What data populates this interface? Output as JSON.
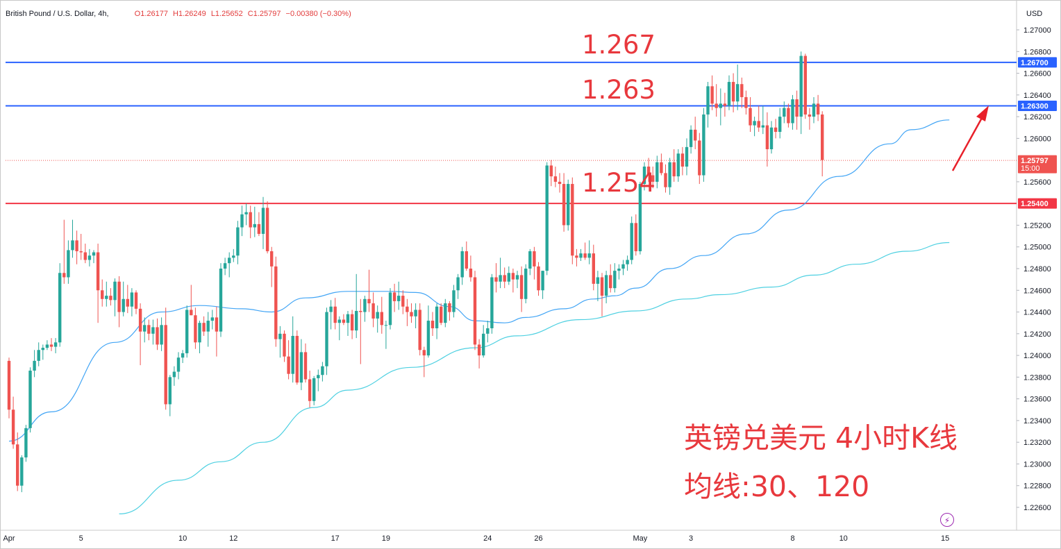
{
  "header": {
    "symbol": "British Pound / U.S. Dollar, 4h,",
    "open": "O1.26177",
    "high": "H1.26249",
    "low": "L1.25652",
    "close": "C1.25797",
    "change": "−0.00380 (−0.30%)",
    "currency": "USD"
  },
  "annotations": {
    "level_high": "1.267",
    "level_mid": "1.263",
    "level_low": "1.254",
    "title_cn": "英镑兑美元 4小时K线",
    "ma_cn": "均线:30、120"
  },
  "colors": {
    "up": "#26a69a",
    "down": "#ef5350",
    "ma30": "#42a5f5",
    "ma120": "#4dd0e1",
    "resistance": "#2962ff",
    "support": "#f23645",
    "annotation": "#e8383d"
  },
  "chart_data": {
    "type": "candlestick",
    "timeframe": "4h",
    "ylim": [
      1.2252,
      1.2718
    ],
    "y_ticks": [
      "1.27000",
      "1.26800",
      "1.26600",
      "1.26400",
      "1.26200",
      "1.26000",
      "1.25600",
      "1.25200",
      "1.25000",
      "1.24800",
      "1.24600",
      "1.24400",
      "1.24200",
      "1.24000",
      "1.23800",
      "1.23600",
      "1.23400",
      "1.23200",
      "1.23000",
      "1.22800",
      "1.22600"
    ],
    "x_labels": [
      {
        "label": "Apr",
        "bar": 0
      },
      {
        "label": "5",
        "bar": 17
      },
      {
        "label": "10",
        "bar": 41
      },
      {
        "label": "12",
        "bar": 53
      },
      {
        "label": "17",
        "bar": 77
      },
      {
        "label": "19",
        "bar": 89
      },
      {
        "label": "24",
        "bar": 113
      },
      {
        "label": "26",
        "bar": 125
      },
      {
        "label": "May",
        "bar": 149
      },
      {
        "label": "3",
        "bar": 161
      },
      {
        "label": "8",
        "bar": 185
      },
      {
        "label": "10",
        "bar": 197
      },
      {
        "label": "15",
        "bar": 221
      }
    ],
    "horizontal_lines": [
      {
        "value": 1.267,
        "label": "1.26700",
        "kind": "resistance"
      },
      {
        "value": 1.263,
        "label": "1.26300",
        "kind": "resistance"
      },
      {
        "value": 1.254,
        "label": "1.25400",
        "kind": "support"
      }
    ],
    "last_price": {
      "value": 1.25797,
      "label": "1.25797",
      "countdown": "15:00"
    },
    "ohlc": [
      [
        1.2395,
        1.2398,
        1.2342,
        1.235
      ],
      [
        1.235,
        1.2362,
        1.2314,
        1.2318
      ],
      [
        1.2318,
        1.2329,
        1.2275,
        1.228
      ],
      [
        1.228,
        1.2308,
        1.2274,
        1.2306
      ],
      [
        1.2306,
        1.2336,
        1.2302,
        1.2333
      ],
      [
        1.2333,
        1.2389,
        1.2329,
        1.2386
      ],
      [
        1.2386,
        1.2405,
        1.238,
        1.2395
      ],
      [
        1.2395,
        1.2412,
        1.239,
        1.2405
      ],
      [
        1.2405,
        1.241,
        1.2396,
        1.2407
      ],
      [
        1.2407,
        1.2414,
        1.2405,
        1.241
      ],
      [
        1.241,
        1.2416,
        1.2404,
        1.2408
      ],
      [
        1.2408,
        1.2416,
        1.2402,
        1.2412
      ],
      [
        1.2412,
        1.2485,
        1.2408,
        1.2476
      ],
      [
        1.2476,
        1.2525,
        1.2466,
        1.2472
      ],
      [
        1.2472,
        1.2506,
        1.2466,
        1.2497
      ],
      [
        1.2497,
        1.2525,
        1.249,
        1.2506
      ],
      [
        1.2506,
        1.2515,
        1.2484,
        1.2496
      ],
      [
        1.2496,
        1.2512,
        1.2488,
        1.2495
      ],
      [
        1.2495,
        1.2503,
        1.2485,
        1.2488
      ],
      [
        1.2488,
        1.2498,
        1.2482,
        1.2492
      ],
      [
        1.2492,
        1.2497,
        1.2485,
        1.2495
      ],
      [
        1.2495,
        1.2503,
        1.243,
        1.246
      ],
      [
        1.246,
        1.247,
        1.2445,
        1.2452
      ],
      [
        1.2452,
        1.2468,
        1.2445,
        1.2455
      ],
      [
        1.2455,
        1.2462,
        1.2446,
        1.2451
      ],
      [
        1.2451,
        1.2471,
        1.2436,
        1.2468
      ],
      [
        1.2468,
        1.2473,
        1.2426,
        1.244
      ],
      [
        1.244,
        1.2468,
        1.2436,
        1.2452
      ],
      [
        1.2452,
        1.2465,
        1.2439,
        1.2445
      ],
      [
        1.2445,
        1.2462,
        1.2436,
        1.2458
      ],
      [
        1.2458,
        1.246,
        1.2438,
        1.2443
      ],
      [
        1.2443,
        1.2448,
        1.2391,
        1.2422
      ],
      [
        1.2422,
        1.2435,
        1.2412,
        1.2428
      ],
      [
        1.2428,
        1.2433,
        1.2414,
        1.242
      ],
      [
        1.242,
        1.2433,
        1.241,
        1.2426
      ],
      [
        1.2426,
        1.2434,
        1.2405,
        1.241
      ],
      [
        1.241,
        1.2435,
        1.2404,
        1.2428
      ],
      [
        1.2428,
        1.2444,
        1.235,
        1.2355
      ],
      [
        1.2355,
        1.2382,
        1.2344,
        1.238
      ],
      [
        1.238,
        1.239,
        1.2372,
        1.2385
      ],
      [
        1.2385,
        1.2403,
        1.2378,
        1.2398
      ],
      [
        1.2398,
        1.2405,
        1.2393,
        1.2402
      ],
      [
        1.2402,
        1.2446,
        1.2398,
        1.2442
      ],
      [
        1.2442,
        1.2465,
        1.2437,
        1.2437
      ],
      [
        1.2437,
        1.2444,
        1.2406,
        1.2412
      ],
      [
        1.2412,
        1.2432,
        1.2402,
        1.243
      ],
      [
        1.243,
        1.2436,
        1.2418,
        1.2422
      ],
      [
        1.2422,
        1.244,
        1.2408,
        1.2432
      ],
      [
        1.2432,
        1.2442,
        1.2424,
        1.2435
      ],
      [
        1.2435,
        1.2445,
        1.2399,
        1.2422
      ],
      [
        1.2422,
        1.2485,
        1.2417,
        1.248
      ],
      [
        1.248,
        1.249,
        1.2474,
        1.2485
      ],
      [
        1.2485,
        1.2495,
        1.2472,
        1.249
      ],
      [
        1.249,
        1.2498,
        1.2486,
        1.2492
      ],
      [
        1.2492,
        1.2524,
        1.2484,
        1.2518
      ],
      [
        1.2518,
        1.2538,
        1.251,
        1.253
      ],
      [
        1.253,
        1.254,
        1.252,
        1.2532
      ],
      [
        1.2532,
        1.2538,
        1.2508,
        1.2518
      ],
      [
        1.2518,
        1.2537,
        1.2509,
        1.2521
      ],
      [
        1.2521,
        1.2532,
        1.251,
        1.2512
      ],
      [
        1.2512,
        1.2546,
        1.2498,
        1.2536
      ],
      [
        1.2536,
        1.2542,
        1.2494,
        1.2496
      ],
      [
        1.2496,
        1.25,
        1.2463,
        1.2482
      ],
      [
        1.2482,
        1.2491,
        1.2408,
        1.2415
      ],
      [
        1.2415,
        1.2427,
        1.2398,
        1.242
      ],
      [
        1.242,
        1.2423,
        1.2394,
        1.2399
      ],
      [
        1.2399,
        1.2414,
        1.2378,
        1.2383
      ],
      [
        1.2383,
        1.2436,
        1.2375,
        1.2418
      ],
      [
        1.2418,
        1.2423,
        1.2373,
        1.2375
      ],
      [
        1.2375,
        1.2415,
        1.2368,
        1.2403
      ],
      [
        1.2403,
        1.2411,
        1.2375,
        1.2378
      ],
      [
        1.2378,
        1.2386,
        1.2352,
        1.2358
      ],
      [
        1.2358,
        1.2381,
        1.2354,
        1.2379
      ],
      [
        1.2379,
        1.2387,
        1.2367,
        1.2382
      ],
      [
        1.2382,
        1.2394,
        1.2376,
        1.239
      ],
      [
        1.239,
        1.2444,
        1.2382,
        1.244
      ],
      [
        1.244,
        1.2451,
        1.2424,
        1.2445
      ],
      [
        1.2445,
        1.2453,
        1.2424,
        1.243
      ],
      [
        1.243,
        1.2436,
        1.2414,
        1.2433
      ],
      [
        1.2433,
        1.2438,
        1.2428,
        1.243
      ],
      [
        1.243,
        1.2441,
        1.2418,
        1.2438
      ],
      [
        1.2438,
        1.2442,
        1.2415,
        1.2423
      ],
      [
        1.2423,
        1.2475,
        1.2416,
        1.2441
      ],
      [
        1.2441,
        1.2452,
        1.2392,
        1.244
      ],
      [
        1.244,
        1.2455,
        1.2431,
        1.2452
      ],
      [
        1.2452,
        1.2479,
        1.244,
        1.2448
      ],
      [
        1.2448,
        1.2458,
        1.2426,
        1.2434
      ],
      [
        1.2434,
        1.2446,
        1.2421,
        1.244
      ],
      [
        1.244,
        1.2454,
        1.242,
        1.2428
      ],
      [
        1.2428,
        1.2432,
        1.2406,
        1.2428
      ],
      [
        1.2428,
        1.2462,
        1.2424,
        1.2458
      ],
      [
        1.2458,
        1.2466,
        1.244,
        1.245
      ],
      [
        1.245,
        1.2468,
        1.2442,
        1.2455
      ],
      [
        1.2455,
        1.246,
        1.2438,
        1.2445
      ],
      [
        1.2445,
        1.2452,
        1.2427,
        1.244
      ],
      [
        1.244,
        1.2448,
        1.243,
        1.2436
      ],
      [
        1.2436,
        1.2448,
        1.2425,
        1.2442
      ],
      [
        1.2442,
        1.2448,
        1.24,
        1.2405
      ],
      [
        1.2405,
        1.2408,
        1.238,
        1.24
      ],
      [
        1.24,
        1.2446,
        1.2398,
        1.2432
      ],
      [
        1.2432,
        1.244,
        1.2418,
        1.2425
      ],
      [
        1.2425,
        1.2448,
        1.2415,
        1.2445
      ],
      [
        1.2445,
        1.2448,
        1.2428,
        1.243
      ],
      [
        1.243,
        1.2452,
        1.2426,
        1.2448
      ],
      [
        1.2448,
        1.245,
        1.2432,
        1.244
      ],
      [
        1.244,
        1.2465,
        1.2435,
        1.246
      ],
      [
        1.246,
        1.2475,
        1.2452,
        1.2472
      ],
      [
        1.2472,
        1.25,
        1.2465,
        1.2496
      ],
      [
        1.2496,
        1.2505,
        1.2478,
        1.248
      ],
      [
        1.248,
        1.2492,
        1.2468,
        1.2472
      ],
      [
        1.2472,
        1.2478,
        1.2405,
        1.241
      ],
      [
        1.241,
        1.2415,
        1.2388,
        1.24
      ],
      [
        1.24,
        1.2428,
        1.2398,
        1.242
      ],
      [
        1.242,
        1.2432,
        1.2412,
        1.2425
      ],
      [
        1.2425,
        1.2475,
        1.242,
        1.2472
      ],
      [
        1.2472,
        1.2485,
        1.2458,
        1.2468
      ],
      [
        1.2468,
        1.249,
        1.2462,
        1.2474
      ],
      [
        1.2474,
        1.2481,
        1.2462,
        1.2468
      ],
      [
        1.2468,
        1.2482,
        1.2465,
        1.2476
      ],
      [
        1.2476,
        1.248,
        1.2458,
        1.247
      ],
      [
        1.247,
        1.2478,
        1.2462,
        1.2474
      ],
      [
        1.2474,
        1.2482,
        1.244,
        1.2452
      ],
      [
        1.2452,
        1.2484,
        1.2448,
        1.248
      ],
      [
        1.248,
        1.2498,
        1.2474,
        1.2496
      ],
      [
        1.2496,
        1.25,
        1.247,
        1.2482
      ],
      [
        1.2482,
        1.2486,
        1.2455,
        1.246
      ],
      [
        1.246,
        1.2478,
        1.2452,
        1.2478
      ],
      [
        1.2478,
        1.2578,
        1.2474,
        1.2575
      ],
      [
        1.2575,
        1.258,
        1.2556,
        1.2565
      ],
      [
        1.2565,
        1.2574,
        1.2555,
        1.256
      ],
      [
        1.256,
        1.2568,
        1.255,
        1.2558
      ],
      [
        1.2558,
        1.2568,
        1.2514,
        1.252
      ],
      [
        1.252,
        1.2562,
        1.2515,
        1.2558
      ],
      [
        1.2558,
        1.2564,
        1.2484,
        1.2492
      ],
      [
        1.2492,
        1.2498,
        1.2482,
        1.249
      ],
      [
        1.249,
        1.2498,
        1.2487,
        1.2494
      ],
      [
        1.2494,
        1.2504,
        1.2488,
        1.249
      ],
      [
        1.249,
        1.2506,
        1.2484,
        1.2494
      ],
      [
        1.2494,
        1.2502,
        1.246,
        1.2466
      ],
      [
        1.2466,
        1.2478,
        1.245,
        1.2472
      ],
      [
        1.2472,
        1.2476,
        1.2436,
        1.2455
      ],
      [
        1.2455,
        1.2478,
        1.2448,
        1.2474
      ],
      [
        1.2474,
        1.2484,
        1.2458,
        1.2462
      ],
      [
        1.2462,
        1.2485,
        1.2458,
        1.2478
      ],
      [
        1.2478,
        1.2484,
        1.247,
        1.248
      ],
      [
        1.248,
        1.2488,
        1.2474,
        1.2484
      ],
      [
        1.2484,
        1.2492,
        1.2478,
        1.2488
      ],
      [
        1.2488,
        1.2528,
        1.2484,
        1.2522
      ],
      [
        1.2522,
        1.253,
        1.2492,
        1.2496
      ],
      [
        1.2496,
        1.256,
        1.2493,
        1.2558
      ],
      [
        1.2558,
        1.2578,
        1.2552,
        1.2574
      ],
      [
        1.2574,
        1.2582,
        1.256,
        1.2566
      ],
      [
        1.2566,
        1.2574,
        1.2554,
        1.256
      ],
      [
        1.256,
        1.2584,
        1.2554,
        1.2578
      ],
      [
        1.2578,
        1.2586,
        1.2566,
        1.2568
      ],
      [
        1.2568,
        1.2576,
        1.255,
        1.2555
      ],
      [
        1.2555,
        1.2582,
        1.2548,
        1.2578
      ],
      [
        1.2578,
        1.259,
        1.256,
        1.2565
      ],
      [
        1.2565,
        1.259,
        1.256,
        1.2586
      ],
      [
        1.2586,
        1.2592,
        1.2566,
        1.2574
      ],
      [
        1.2574,
        1.26,
        1.2566,
        1.2592
      ],
      [
        1.2592,
        1.2612,
        1.2586,
        1.2608
      ],
      [
        1.2608,
        1.262,
        1.259,
        1.2598
      ],
      [
        1.2598,
        1.2605,
        1.2558,
        1.2566
      ],
      [
        1.2566,
        1.2628,
        1.256,
        1.2622
      ],
      [
        1.2622,
        1.2652,
        1.261,
        1.2648
      ],
      [
        1.2648,
        1.2658,
        1.2626,
        1.2632
      ],
      [
        1.2632,
        1.265,
        1.262,
        1.2628
      ],
      [
        1.2628,
        1.2646,
        1.2612,
        1.2632
      ],
      [
        1.2632,
        1.2642,
        1.262,
        1.263
      ],
      [
        1.263,
        1.2658,
        1.2626,
        1.2652
      ],
      [
        1.2652,
        1.266,
        1.2624,
        1.2634
      ],
      [
        1.2634,
        1.2668,
        1.2626,
        1.265
      ],
      [
        1.265,
        1.2656,
        1.2628,
        1.2638
      ],
      [
        1.2638,
        1.2644,
        1.2622,
        1.2628
      ],
      [
        1.2628,
        1.2638,
        1.2606,
        1.2612
      ],
      [
        1.2612,
        1.262,
        1.2602,
        1.2616
      ],
      [
        1.2616,
        1.263,
        1.2606,
        1.261
      ],
      [
        1.261,
        1.263,
        1.2604,
        1.2612
      ],
      [
        1.2612,
        1.2624,
        1.2574,
        1.259
      ],
      [
        1.259,
        1.2616,
        1.2586,
        1.261
      ],
      [
        1.261,
        1.2618,
        1.26,
        1.2606
      ],
      [
        1.2606,
        1.2628,
        1.26,
        1.262
      ],
      [
        1.262,
        1.2634,
        1.2614,
        1.2628
      ],
      [
        1.2628,
        1.2632,
        1.261,
        1.2614
      ],
      [
        1.2614,
        1.264,
        1.2608,
        1.2636
      ],
      [
        1.2636,
        1.2644,
        1.2608,
        1.262
      ],
      [
        1.262,
        1.268,
        1.2604,
        1.2676
      ],
      [
        1.2676,
        1.2678,
        1.2618,
        1.2622
      ],
      [
        1.2622,
        1.2628,
        1.2608,
        1.262
      ],
      [
        1.262,
        1.2638,
        1.2614,
        1.2632
      ],
      [
        1.2632,
        1.264,
        1.2616,
        1.2622
      ],
      [
        1.2622,
        1.2625,
        1.2565,
        1.258
      ]
    ],
    "ma30_anchors": [
      [
        0,
        1.2321
      ],
      [
        10,
        1.2348
      ],
      [
        25,
        1.2412
      ],
      [
        36,
        1.244
      ],
      [
        45,
        1.2446
      ],
      [
        55,
        1.2443
      ],
      [
        62,
        1.244
      ],
      [
        70,
        1.2453
      ],
      [
        80,
        1.2459
      ],
      [
        90,
        1.2459
      ],
      [
        96,
        1.2458
      ],
      [
        104,
        1.2445
      ],
      [
        110,
        1.2432
      ],
      [
        117,
        1.243
      ],
      [
        122,
        1.2435
      ],
      [
        131,
        1.2443
      ],
      [
        138,
        1.2452
      ],
      [
        143,
        1.2455
      ],
      [
        148,
        1.2462
      ],
      [
        156,
        1.248
      ],
      [
        164,
        1.2492
      ],
      [
        174,
        1.2512
      ],
      [
        184,
        1.2534
      ],
      [
        196,
        1.2565
      ],
      [
        208,
        1.2595
      ],
      [
        213,
        1.2608
      ],
      [
        222,
        1.2617
      ]
    ],
    "ma120_anchors": [
      [
        26,
        1.2254
      ],
      [
        40,
        1.2285
      ],
      [
        50,
        1.2302
      ],
      [
        60,
        1.232
      ],
      [
        72,
        1.2352
      ],
      [
        80,
        1.2368
      ],
      [
        95,
        1.2389
      ],
      [
        110,
        1.2407
      ],
      [
        120,
        1.2418
      ],
      [
        135,
        1.2433
      ],
      [
        148,
        1.2441
      ],
      [
        160,
        1.2452
      ],
      [
        168,
        1.2456
      ],
      [
        180,
        1.2463
      ],
      [
        190,
        1.2474
      ],
      [
        200,
        1.2484
      ],
      [
        212,
        1.2496
      ],
      [
        222,
        1.2504
      ]
    ]
  }
}
